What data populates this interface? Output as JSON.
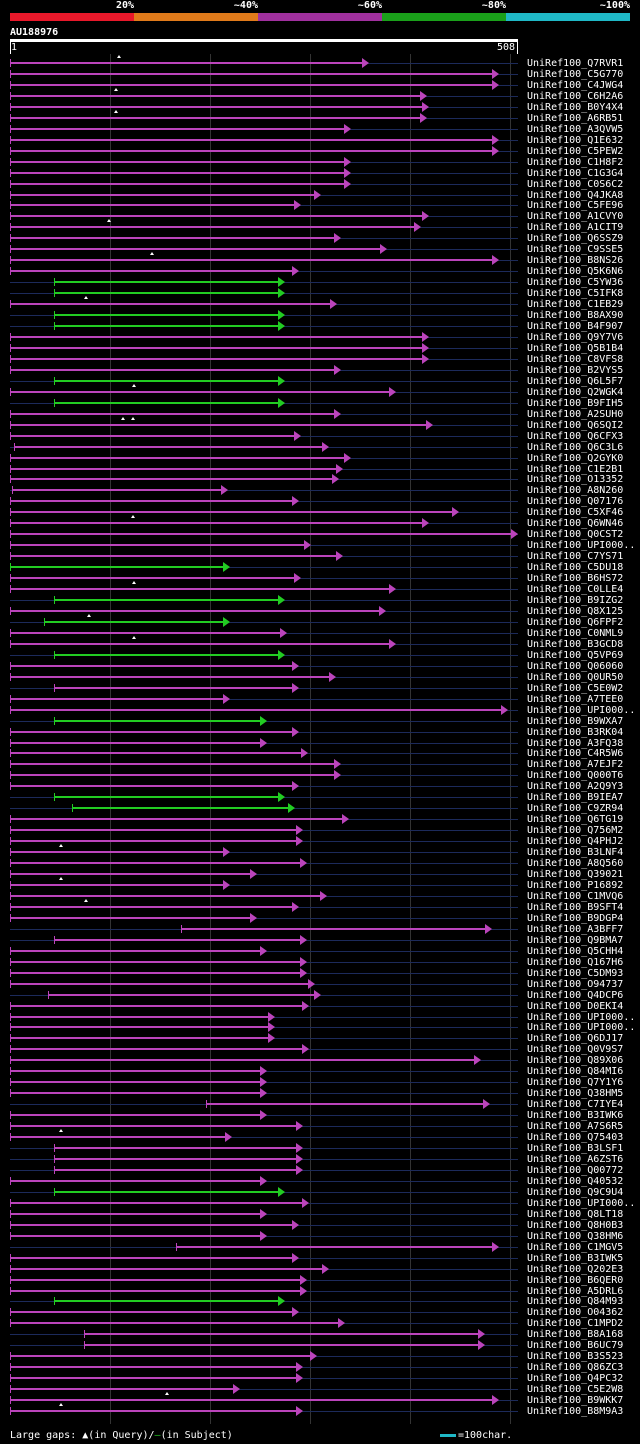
{
  "legend": [
    {
      "label": "20%",
      "color": "#e8182a"
    },
    {
      "label": "~40%",
      "color": "#e07a1a"
    },
    {
      "label": "~60%",
      "color": "#a0309e"
    },
    {
      "label": "~80%",
      "color": "#1aa01a"
    },
    {
      "label": "~100%",
      "color": "#1fb8c6"
    }
  ],
  "query": {
    "id": "AU188976",
    "start": "1",
    "end": "508",
    "length": 508
  },
  "colors": {
    "purple": "#bb44bb",
    "green": "#22cc22",
    "track": "#1c2a5a"
  },
  "hits": [
    {
      "name": "UniRef100_Q7RVR1",
      "start": 1,
      "end": 359,
      "color": "purple",
      "marks": [
        108
      ]
    },
    {
      "name": "UniRef100_C5G770",
      "start": 1,
      "end": 489,
      "color": "purple",
      "marks": []
    },
    {
      "name": "UniRef100_C4JWG4",
      "start": 1,
      "end": 489,
      "color": "purple",
      "marks": []
    },
    {
      "name": "UniRef100_C6H2A6",
      "start": 1,
      "end": 417,
      "color": "purple",
      "marks": [
        105
      ]
    },
    {
      "name": "UniRef100_B0Y4X4",
      "start": 1,
      "end": 419,
      "color": "purple",
      "marks": []
    },
    {
      "name": "UniRef100_A6RB51",
      "start": 1,
      "end": 417,
      "color": "purple",
      "marks": [
        105
      ]
    },
    {
      "name": "UniRef100_A3QVW5",
      "start": 1,
      "end": 341,
      "color": "purple",
      "marks": []
    },
    {
      "name": "UniRef100_Q1E632",
      "start": 1,
      "end": 489,
      "color": "purple",
      "marks": []
    },
    {
      "name": "UniRef100_C5PEW2",
      "start": 1,
      "end": 489,
      "color": "purple",
      "marks": []
    },
    {
      "name": "UniRef100_C1H8F2",
      "start": 1,
      "end": 341,
      "color": "purple",
      "marks": []
    },
    {
      "name": "UniRef100_C1G3G4",
      "start": 1,
      "end": 341,
      "color": "purple",
      "marks": []
    },
    {
      "name": "UniRef100_C0S6C2",
      "start": 1,
      "end": 341,
      "color": "purple",
      "marks": []
    },
    {
      "name": "UniRef100_Q4JKA8",
      "start": 1,
      "end": 311,
      "color": "purple",
      "marks": []
    },
    {
      "name": "UniRef100_C5FE96",
      "start": 1,
      "end": 291,
      "color": "purple",
      "marks": []
    },
    {
      "name": "UniRef100_A1CVY0",
      "start": 1,
      "end": 419,
      "color": "purple",
      "marks": []
    },
    {
      "name": "UniRef100_A1CIT9",
      "start": 1,
      "end": 411,
      "color": "purple",
      "marks": [
        98
      ]
    },
    {
      "name": "UniRef100_Q6SSZ9",
      "start": 1,
      "end": 331,
      "color": "purple",
      "marks": []
    },
    {
      "name": "UniRef100_C9SSE5",
      "start": 1,
      "end": 377,
      "color": "purple",
      "marks": []
    },
    {
      "name": "UniRef100_B8NS26",
      "start": 1,
      "end": 489,
      "color": "purple",
      "marks": [
        141
      ]
    },
    {
      "name": "UniRef100_Q5K6N6",
      "start": 1,
      "end": 289,
      "color": "purple",
      "marks": []
    },
    {
      "name": "UniRef100_C5YW36",
      "start": 45,
      "end": 275,
      "color": "green",
      "marks": []
    },
    {
      "name": "UniRef100_C5IFK8",
      "start": 45,
      "end": 275,
      "color": "green",
      "marks": []
    },
    {
      "name": "UniRef100_C1EB29",
      "start": 1,
      "end": 327,
      "color": "purple",
      "marks": [
        75
      ]
    },
    {
      "name": "UniRef100_B8AX90",
      "start": 45,
      "end": 275,
      "color": "green",
      "marks": []
    },
    {
      "name": "UniRef100_B4F907",
      "start": 45,
      "end": 275,
      "color": "green",
      "marks": []
    },
    {
      "name": "UniRef100_Q9Y7V6",
      "start": 1,
      "end": 419,
      "color": "purple",
      "marks": []
    },
    {
      "name": "UniRef100_Q5B1B4",
      "start": 1,
      "end": 419,
      "color": "purple",
      "marks": []
    },
    {
      "name": "UniRef100_C8VFS8",
      "start": 1,
      "end": 419,
      "color": "purple",
      "marks": []
    },
    {
      "name": "UniRef100_B2VYS5",
      "start": 1,
      "end": 331,
      "color": "purple",
      "marks": []
    },
    {
      "name": "UniRef100_Q6L5F7",
      "start": 45,
      "end": 275,
      "color": "green",
      "marks": []
    },
    {
      "name": "UniRef100_Q2WGK4",
      "start": 1,
      "end": 386,
      "color": "purple",
      "marks": [
        123
      ]
    },
    {
      "name": "UniRef100_B9FIH5",
      "start": 45,
      "end": 275,
      "color": "green",
      "marks": []
    },
    {
      "name": "UniRef100_A2SUH0",
      "start": 1,
      "end": 331,
      "color": "purple",
      "marks": []
    },
    {
      "name": "UniRef100_Q6SQI2",
      "start": 1,
      "end": 423,
      "color": "purple",
      "marks": [
        112,
        122
      ]
    },
    {
      "name": "UniRef100_Q6CFX3",
      "start": 1,
      "end": 291,
      "color": "purple",
      "marks": []
    },
    {
      "name": "UniRef100_Q6C3L6",
      "start": 5,
      "end": 319,
      "color": "purple",
      "marks": []
    },
    {
      "name": "UniRef100_Q2GYK0",
      "start": 1,
      "end": 341,
      "color": "purple",
      "marks": []
    },
    {
      "name": "UniRef100_C1E2B1",
      "start": 1,
      "end": 333,
      "color": "purple",
      "marks": []
    },
    {
      "name": "UniRef100_O13352",
      "start": 1,
      "end": 329,
      "color": "purple",
      "marks": []
    },
    {
      "name": "UniRef100_A8N260",
      "start": 3,
      "end": 218,
      "color": "purple",
      "marks": []
    },
    {
      "name": "UniRef100_Q07176",
      "start": 1,
      "end": 289,
      "color": "purple",
      "marks": []
    },
    {
      "name": "UniRef100_C5XF46",
      "start": 1,
      "end": 449,
      "color": "purple",
      "marks": []
    },
    {
      "name": "UniRef100_Q6WN46",
      "start": 1,
      "end": 419,
      "color": "purple",
      "marks": [
        122
      ]
    },
    {
      "name": "UniRef100_Q0CST2",
      "start": 1,
      "end": 531,
      "color": "purple",
      "marks": []
    },
    {
      "name": "UniRef100_UPI000..",
      "start": 1,
      "end": 301,
      "color": "purple",
      "marks": []
    },
    {
      "name": "UniRef100_C7YS71",
      "start": 1,
      "end": 333,
      "color": "purple",
      "marks": []
    },
    {
      "name": "UniRef100_C5DU18",
      "start": 1,
      "end": 220,
      "color": "green",
      "marks": []
    },
    {
      "name": "UniRef100_B6HS72",
      "start": 1,
      "end": 291,
      "color": "purple",
      "marks": []
    },
    {
      "name": "UniRef100_C0LLE4",
      "start": 1,
      "end": 386,
      "color": "purple",
      "marks": [
        123
      ]
    },
    {
      "name": "UniRef100_B9IZG2",
      "start": 45,
      "end": 275,
      "color": "green",
      "marks": []
    },
    {
      "name": "UniRef100_Q8X125",
      "start": 1,
      "end": 376,
      "color": "purple",
      "marks": []
    },
    {
      "name": "UniRef100_Q6FPF2",
      "start": 35,
      "end": 220,
      "color": "green",
      "marks": [
        78
      ]
    },
    {
      "name": "UniRef100_C0NML9",
      "start": 1,
      "end": 277,
      "color": "purple",
      "marks": []
    },
    {
      "name": "UniRef100_B3GCD8",
      "start": 1,
      "end": 386,
      "color": "purple",
      "marks": [
        123
      ]
    },
    {
      "name": "UniRef100_Q5VP69",
      "start": 45,
      "end": 275,
      "color": "green",
      "marks": []
    },
    {
      "name": "UniRef100_Q06060",
      "start": 1,
      "end": 289,
      "color": "purple",
      "marks": []
    },
    {
      "name": "UniRef100_Q0UR50",
      "start": 1,
      "end": 326,
      "color": "purple",
      "marks": []
    },
    {
      "name": "UniRef100_C5E0W2",
      "start": 45,
      "end": 289,
      "color": "purple",
      "marks": []
    },
    {
      "name": "UniRef100_A7TEE0",
      "start": 1,
      "end": 220,
      "color": "purple",
      "marks": []
    },
    {
      "name": "UniRef100_UPI000..",
      "start": 1,
      "end": 498,
      "color": "purple",
      "marks": []
    },
    {
      "name": "UniRef100_B9WXA7",
      "start": 45,
      "end": 257,
      "color": "green",
      "marks": []
    },
    {
      "name": "UniRef100_B3RK04",
      "start": 1,
      "end": 289,
      "color": "purple",
      "marks": []
    },
    {
      "name": "UniRef100_A3FQ38",
      "start": 1,
      "end": 257,
      "color": "purple",
      "marks": []
    },
    {
      "name": "UniRef100_C4R5W6",
      "start": 1,
      "end": 298,
      "color": "purple",
      "marks": []
    },
    {
      "name": "UniRef100_A7EJF2",
      "start": 1,
      "end": 331,
      "color": "purple",
      "marks": []
    },
    {
      "name": "UniRef100_Q000T6",
      "start": 1,
      "end": 331,
      "color": "purple",
      "marks": []
    },
    {
      "name": "UniRef100_A2Q9Y3",
      "start": 1,
      "end": 289,
      "color": "purple",
      "marks": []
    },
    {
      "name": "UniRef100_B9IEA7",
      "start": 45,
      "end": 275,
      "color": "green",
      "marks": []
    },
    {
      "name": "UniRef100_C9ZR94",
      "start": 63,
      "end": 285,
      "color": "green",
      "marks": []
    },
    {
      "name": "UniRef100_Q6TG19",
      "start": 1,
      "end": 339,
      "color": "purple",
      "marks": []
    },
    {
      "name": "UniRef100_Q756M2",
      "start": 1,
      "end": 293,
      "color": "purple",
      "marks": []
    },
    {
      "name": "UniRef100_Q4PHJ2",
      "start": 1,
      "end": 293,
      "color": "purple",
      "marks": []
    },
    {
      "name": "UniRef100_B3LNF4",
      "start": 1,
      "end": 220,
      "color": "purple",
      "marks": [
        50
      ]
    },
    {
      "name": "UniRef100_A8Q560",
      "start": 1,
      "end": 297,
      "color": "purple",
      "marks": []
    },
    {
      "name": "UniRef100_Q39021",
      "start": 1,
      "end": 247,
      "color": "purple",
      "marks": []
    },
    {
      "name": "UniRef100_P16892",
      "start": 1,
      "end": 220,
      "color": "purple",
      "marks": [
        50
      ]
    },
    {
      "name": "UniRef100_C1MVQ6",
      "start": 1,
      "end": 317,
      "color": "purple",
      "marks": []
    },
    {
      "name": "UniRef100_B9SFT4",
      "start": 1,
      "end": 289,
      "color": "purple",
      "marks": [
        75
      ]
    },
    {
      "name": "UniRef100_B9DGP4",
      "start": 1,
      "end": 247,
      "color": "purple",
      "marks": []
    },
    {
      "name": "UniRef100_A3BFF7",
      "start": 172,
      "end": 482,
      "color": "purple",
      "marks": []
    },
    {
      "name": "UniRef100_Q9BMA7",
      "start": 45,
      "end": 297,
      "color": "purple",
      "marks": []
    },
    {
      "name": "UniRef100_Q5CHH4",
      "start": 1,
      "end": 257,
      "color": "purple",
      "marks": []
    },
    {
      "name": "UniRef100_Q167H6",
      "start": 1,
      "end": 297,
      "color": "purple",
      "marks": []
    },
    {
      "name": "UniRef100_C5DM93",
      "start": 1,
      "end": 297,
      "color": "purple",
      "marks": []
    },
    {
      "name": "UniRef100_O94737",
      "start": 1,
      "end": 305,
      "color": "purple",
      "marks": []
    },
    {
      "name": "UniRef100_Q4DCP6",
      "start": 39,
      "end": 311,
      "color": "purple",
      "marks": []
    },
    {
      "name": "UniRef100_D0EKI4",
      "start": 1,
      "end": 299,
      "color": "purple",
      "marks": []
    },
    {
      "name": "UniRef100_UPI000..",
      "start": 1,
      "end": 265,
      "color": "purple",
      "marks": []
    },
    {
      "name": "UniRef100_UPI000..",
      "start": 1,
      "end": 265,
      "color": "purple",
      "marks": []
    },
    {
      "name": "UniRef100_Q6DJ17",
      "start": 1,
      "end": 265,
      "color": "purple",
      "marks": []
    },
    {
      "name": "UniRef100_Q0V9S7",
      "start": 1,
      "end": 299,
      "color": "purple",
      "marks": []
    },
    {
      "name": "UniRef100_Q89X06",
      "start": 1,
      "end": 471,
      "color": "purple",
      "marks": []
    },
    {
      "name": "UniRef100_Q84MI6",
      "start": 1,
      "end": 257,
      "color": "purple",
      "marks": []
    },
    {
      "name": "UniRef100_Q7Y1Y6",
      "start": 1,
      "end": 257,
      "color": "purple",
      "marks": []
    },
    {
      "name": "UniRef100_Q38HM5",
      "start": 1,
      "end": 257,
      "color": "purple",
      "marks": []
    },
    {
      "name": "UniRef100_C7IYE4",
      "start": 197,
      "end": 480,
      "color": "purple",
      "marks": []
    },
    {
      "name": "UniRef100_B3IWK6",
      "start": 1,
      "end": 257,
      "color": "purple",
      "marks": []
    },
    {
      "name": "UniRef100_A7S6R5",
      "start": 1,
      "end": 293,
      "color": "purple",
      "marks": []
    },
    {
      "name": "UniRef100_Q75403",
      "start": 1,
      "end": 222,
      "color": "purple",
      "marks": [
        50
      ]
    },
    {
      "name": "UniRef100_B3LSF1",
      "start": 45,
      "end": 293,
      "color": "purple",
      "marks": []
    },
    {
      "name": "UniRef100_A6ZST6",
      "start": 45,
      "end": 293,
      "color": "purple",
      "marks": []
    },
    {
      "name": "UniRef100_Q00772",
      "start": 45,
      "end": 293,
      "color": "purple",
      "marks": []
    },
    {
      "name": "UniRef100_Q40532",
      "start": 1,
      "end": 257,
      "color": "purple",
      "marks": []
    },
    {
      "name": "UniRef100_Q9C9U4",
      "start": 45,
      "end": 275,
      "color": "green",
      "marks": []
    },
    {
      "name": "UniRef100_UPI000..",
      "start": 1,
      "end": 299,
      "color": "purple",
      "marks": []
    },
    {
      "name": "UniRef100_Q8LT18",
      "start": 1,
      "end": 257,
      "color": "purple",
      "marks": []
    },
    {
      "name": "UniRef100_Q8H0B3",
      "start": 1,
      "end": 289,
      "color": "purple",
      "marks": []
    },
    {
      "name": "UniRef100_Q38HM6",
      "start": 1,
      "end": 257,
      "color": "purple",
      "marks": []
    },
    {
      "name": "UniRef100_C1MGV5",
      "start": 167,
      "end": 489,
      "color": "purple",
      "marks": []
    },
    {
      "name": "UniRef100_B3IWK5",
      "start": 1,
      "end": 289,
      "color": "purple",
      "marks": []
    },
    {
      "name": "UniRef100_Q202E3",
      "start": 1,
      "end": 319,
      "color": "purple",
      "marks": []
    },
    {
      "name": "UniRef100_B6QER0",
      "start": 1,
      "end": 297,
      "color": "purple",
      "marks": []
    },
    {
      "name": "UniRef100_A5DRL6",
      "start": 1,
      "end": 297,
      "color": "purple",
      "marks": []
    },
    {
      "name": "UniRef100_Q84M93",
      "start": 45,
      "end": 275,
      "color": "green",
      "marks": []
    },
    {
      "name": "UniRef100_O04362",
      "start": 1,
      "end": 289,
      "color": "purple",
      "marks": []
    },
    {
      "name": "UniRef100_C1MPD2",
      "start": 1,
      "end": 335,
      "color": "purple",
      "marks": []
    },
    {
      "name": "UniRef100_B8A168",
      "start": 75,
      "end": 475,
      "color": "purple",
      "marks": []
    },
    {
      "name": "UniRef100_B6UC79",
      "start": 75,
      "end": 475,
      "color": "purple",
      "marks": []
    },
    {
      "name": "UniRef100_B3S523",
      "start": 1,
      "end": 307,
      "color": "purple",
      "marks": []
    },
    {
      "name": "UniRef100_Q86ZC3",
      "start": 1,
      "end": 293,
      "color": "purple",
      "marks": []
    },
    {
      "name": "UniRef100_Q4PC32",
      "start": 1,
      "end": 293,
      "color": "purple",
      "marks": []
    },
    {
      "name": "UniRef100_C5E2W8",
      "start": 1,
      "end": 230,
      "color": "purple",
      "marks": []
    },
    {
      "name": "UniRef100_B9WKK7",
      "start": 1,
      "end": 489,
      "color": "purple",
      "marks": [
        156
      ]
    },
    {
      "name": "UniRef100_B8M9A3",
      "start": 1,
      "end": 293,
      "color": "purple",
      "marks": [
        50
      ]
    }
  ],
  "footer": {
    "gaps_prefix": "Large gaps:",
    "gaps_query": "(in Query)/",
    "gaps_subject": "(in Subject)",
    "scale_label": "=100char."
  }
}
